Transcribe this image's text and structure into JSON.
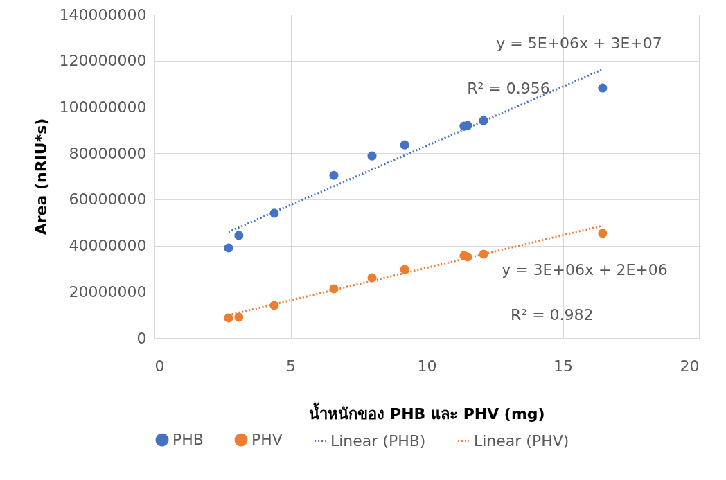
{
  "chart_data": {
    "type": "scatter",
    "xlabel": "น้ำหนักของ PHB และ PHV (mg)",
    "ylabel": "Area (nRIU*s)",
    "xlim": [
      0,
      20
    ],
    "xticks": [
      0,
      5,
      10,
      15,
      20
    ],
    "ylim": [
      0,
      140000000
    ],
    "yticks": [
      0,
      20000000,
      40000000,
      60000000,
      80000000,
      100000000,
      120000000,
      140000000
    ],
    "grid": true,
    "legend": "bottom",
    "series": [
      {
        "name": "PHB",
        "marker": "circle",
        "color": "#4472c4",
        "x": [
          2.72,
          3.1,
          4.4,
          6.59,
          7.99,
          9.19,
          11.37,
          11.5,
          12.09,
          16.46
        ],
        "values": [
          39000000,
          44400000,
          54000000,
          70400000,
          78800000,
          83600000,
          91700000,
          92000000,
          94100000,
          108200000
        ]
      },
      {
        "name": "PHV",
        "marker": "circle",
        "color": "#ed7d31",
        "x": [
          2.72,
          3.1,
          4.4,
          6.59,
          7.99,
          9.19,
          11.37,
          11.5,
          12.09,
          16.46
        ],
        "values": [
          8700000,
          9000000,
          14100000,
          21300000,
          26100000,
          29700000,
          35700000,
          35100000,
          36300000,
          45300000
        ]
      },
      {
        "name": "Linear (PHB)",
        "type": "line",
        "marker": "none",
        "line_style": "dotted",
        "color": "#4472c4",
        "x": [
          2.72,
          16.46
        ],
        "values": [
          45900000,
          116300000
        ]
      },
      {
        "name": "Linear (PHV)",
        "type": "line",
        "marker": "none",
        "line_style": "dotted",
        "color": "#ed7d31",
        "x": [
          2.72,
          16.46
        ],
        "values": [
          9900000,
          48600000
        ]
      }
    ],
    "annotations": [
      "y = 5E+06x + 3E+07",
      "R² = 0.956",
      "y = 3E+06x + 2E+06",
      "R² = 0.982"
    ]
  }
}
